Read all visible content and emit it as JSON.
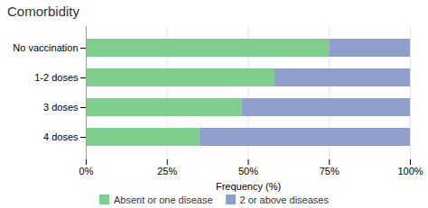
{
  "chart_data": {
    "type": "bar",
    "orientation": "horizontal",
    "stacked": true,
    "title": "Comorbidity",
    "xlabel": "Frequency (%)",
    "categories": [
      "No vaccination",
      "1-2 doses",
      "3 doses",
      "4 doses"
    ],
    "series": [
      {
        "name": "Absent or one disease",
        "color": "#7ecf8e",
        "values": [
          75,
          58,
          48,
          35
        ]
      },
      {
        "name": "2 or above diseases",
        "color": "#8f9ecb",
        "values": [
          25,
          42,
          52,
          65
        ]
      }
    ],
    "xlim": [
      0,
      100
    ],
    "xticks": [
      {
        "value": 0,
        "label": "0%"
      },
      {
        "value": 25,
        "label": "25%"
      },
      {
        "value": 50,
        "label": "50%"
      },
      {
        "value": 75,
        "label": "75%"
      },
      {
        "value": 100,
        "label": "100%"
      }
    ],
    "grid": true,
    "legend": "bottom"
  }
}
